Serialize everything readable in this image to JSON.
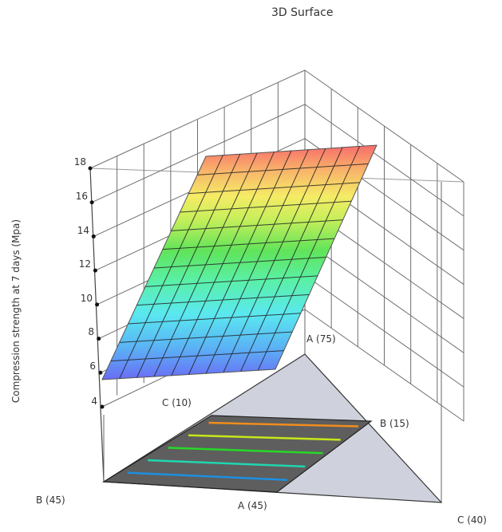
{
  "chart_data": {
    "type": "surface3d",
    "title": "3D Surface",
    "zlabel": "Compression strength  at 7 days (Mpa)",
    "z_ticks": [
      4,
      6,
      8,
      10,
      12,
      14,
      16,
      18
    ],
    "zlim": [
      4,
      18
    ],
    "mixture_vertices": {
      "A_high": "A (75)",
      "A_low": "A (45)",
      "B_high": "B (45)",
      "B_low": "B (15)",
      "C_high": "C (40)",
      "C_low": "C (10)"
    },
    "surface": {
      "shape": "linear plane",
      "z_min": 5.5,
      "z_max": 18.5,
      "colormap": [
        "#6a6cf5",
        "#5ad8f5",
        "#5af0c0",
        "#57e257",
        "#c8ef58",
        "#f5f060",
        "#f8b868",
        "#f86d6d"
      ],
      "grid_divisions": 10
    },
    "contours": {
      "count": 5,
      "colors": [
        "#1d8fe0",
        "#1fd6b0",
        "#27d827",
        "#c8e61a",
        "#f08c1c"
      ]
    },
    "grid": true
  },
  "labels": {
    "title": "3D Surface",
    "ylabel": "Compression strength  at 7 days (Mpa)",
    "ticks": [
      "18",
      "16",
      "14",
      "12",
      "10",
      "8",
      "6",
      "4"
    ],
    "a75": "A (75)",
    "a45": "A (45)",
    "b45": "B (45)",
    "b15": "B (15)",
    "c40": "C (40)",
    "c10": "C (10)"
  }
}
